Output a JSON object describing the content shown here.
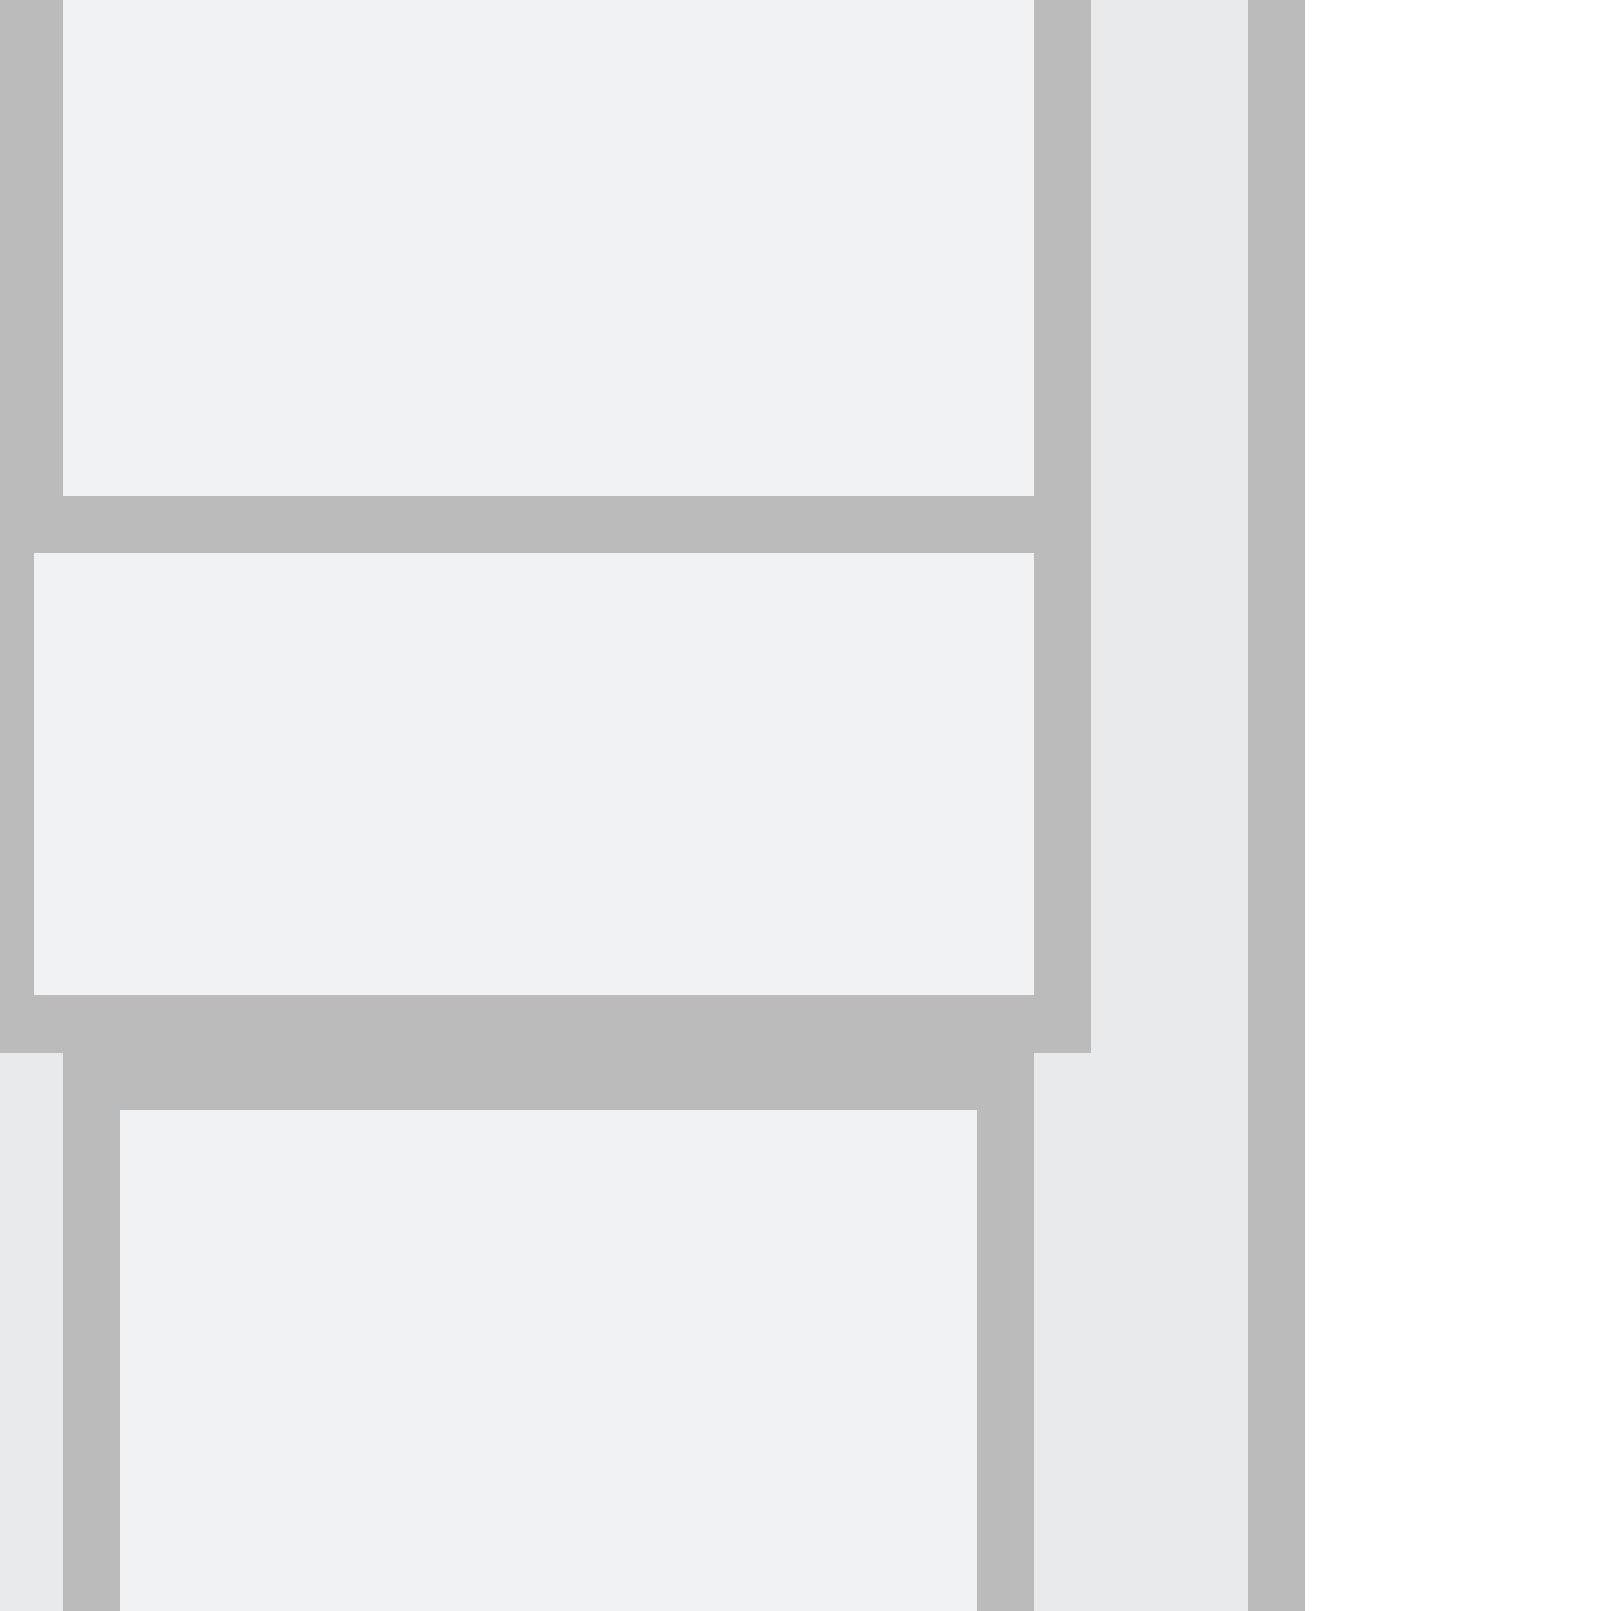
{
  "app": {
    "name": "",
    "description": ""
  },
  "sidebar": {
    "panels": [
      {
        "label": ""
      },
      {
        "label": ""
      },
      {
        "label": ""
      }
    ]
  },
  "colors": {
    "panel_fill": "#f1f2f4",
    "panel_border": "#bbbbbb",
    "track_fill": "#e9eaec",
    "background": "#ffffff"
  }
}
